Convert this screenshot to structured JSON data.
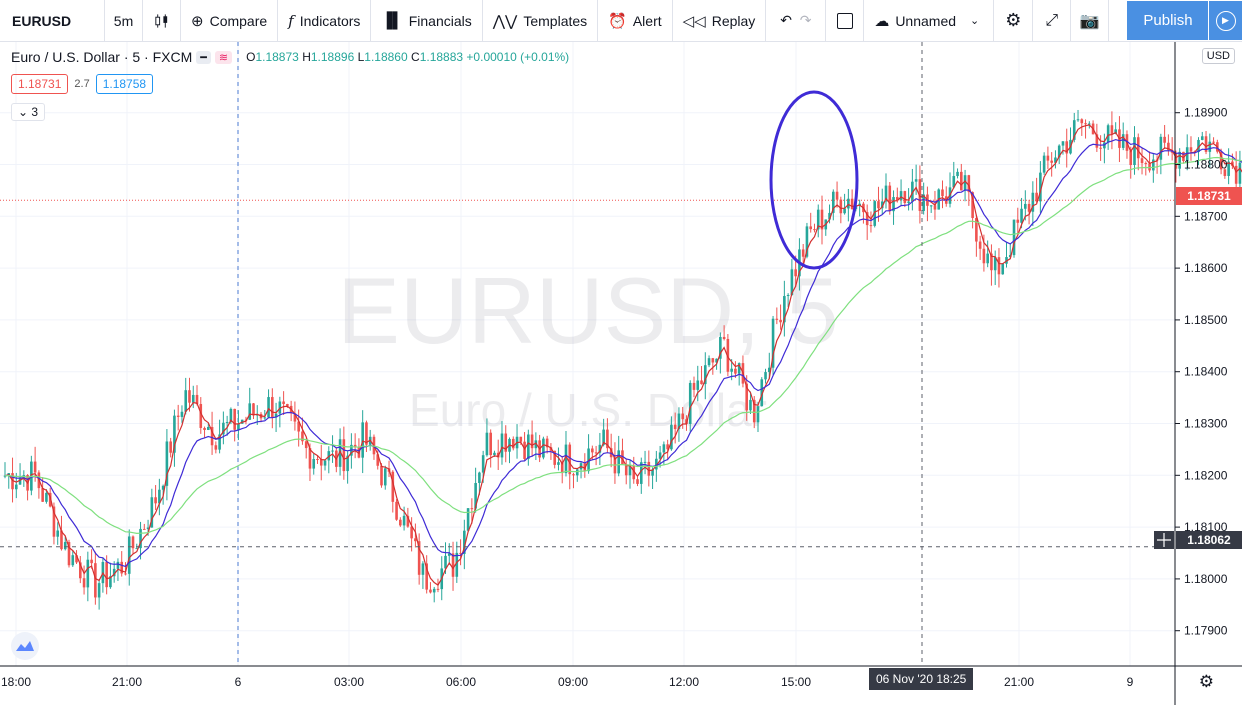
{
  "toolbar": {
    "symbol": "EURUSD",
    "interval": "5m",
    "compare": "Compare",
    "indicators": "Indicators",
    "financials": "Financials",
    "templates": "Templates",
    "alert": "Alert",
    "replay": "Replay",
    "layout_name": "Unnamed",
    "publish": "Publish"
  },
  "legend": {
    "title": "Euro / U.S. Dollar · 5 · FXCM",
    "open_label": "O",
    "open": "1.18873",
    "high_label": "H",
    "high": "1.18896",
    "low_label": "L",
    "low": "1.18860",
    "close_label": "C",
    "close": "1.18883",
    "change": "+0.00010 (+0.01%)",
    "bid": "1.18731",
    "spread": "2.7",
    "ask": "1.18758",
    "indicator_count": "3"
  },
  "watermark": {
    "symbol": "EURUSD, 5",
    "description": "Euro / U.S. Dollar"
  },
  "price_axis": {
    "currency": "USD",
    "current_price": "1.18731",
    "crosshair_price": "1.18062",
    "crosshair_time": "06 Nov '20   18:25"
  },
  "colors": {
    "up": "#26a69a",
    "down": "#ef5350",
    "ma_fast": "#d32f2f",
    "ma_mid": "#3f2bd6",
    "ma_slow": "#7fe07f",
    "highlight_circle": "#3f2bd6"
  },
  "chart_data": {
    "type": "candlestick",
    "title": "Euro / U.S. Dollar · 5 · FXCM",
    "x_ticks": [
      "18:00",
      "21:00",
      "6",
      "03:00",
      "06:00",
      "09:00",
      "12:00",
      "15:00",
      "21:00",
      "9"
    ],
    "y_ticks": [
      1.179,
      1.18,
      1.181,
      1.182,
      1.183,
      1.184,
      1.185,
      1.186,
      1.187,
      1.188,
      1.189
    ],
    "ylim": [
      1.1782,
      1.1902
    ],
    "grid": true,
    "series": [
      {
        "name": "EURUSD 5m candles",
        "hourly_path": [
          1.182,
          1.182,
          1.1806,
          1.1799,
          1.1803,
          1.1815,
          1.1836,
          1.1828,
          1.1831,
          1.1834,
          1.1825,
          1.1823,
          1.1827,
          1.1816,
          1.18,
          1.1803,
          1.1826,
          1.1828,
          1.1824,
          1.1823,
          1.1826,
          1.1818,
          1.1823,
          1.1836,
          1.1845,
          1.1832,
          1.1855,
          1.1868,
          1.1874,
          1.1871,
          1.1876,
          1.1873,
          1.1876,
          1.1858,
          1.187,
          1.1882,
          1.1888,
          1.1884,
          1.1882,
          1.1882,
          1.1885,
          1.188,
          1.1878
        ]
      },
      {
        "name": "MA fast"
      },
      {
        "name": "MA mid"
      },
      {
        "name": "MA slow"
      }
    ]
  }
}
